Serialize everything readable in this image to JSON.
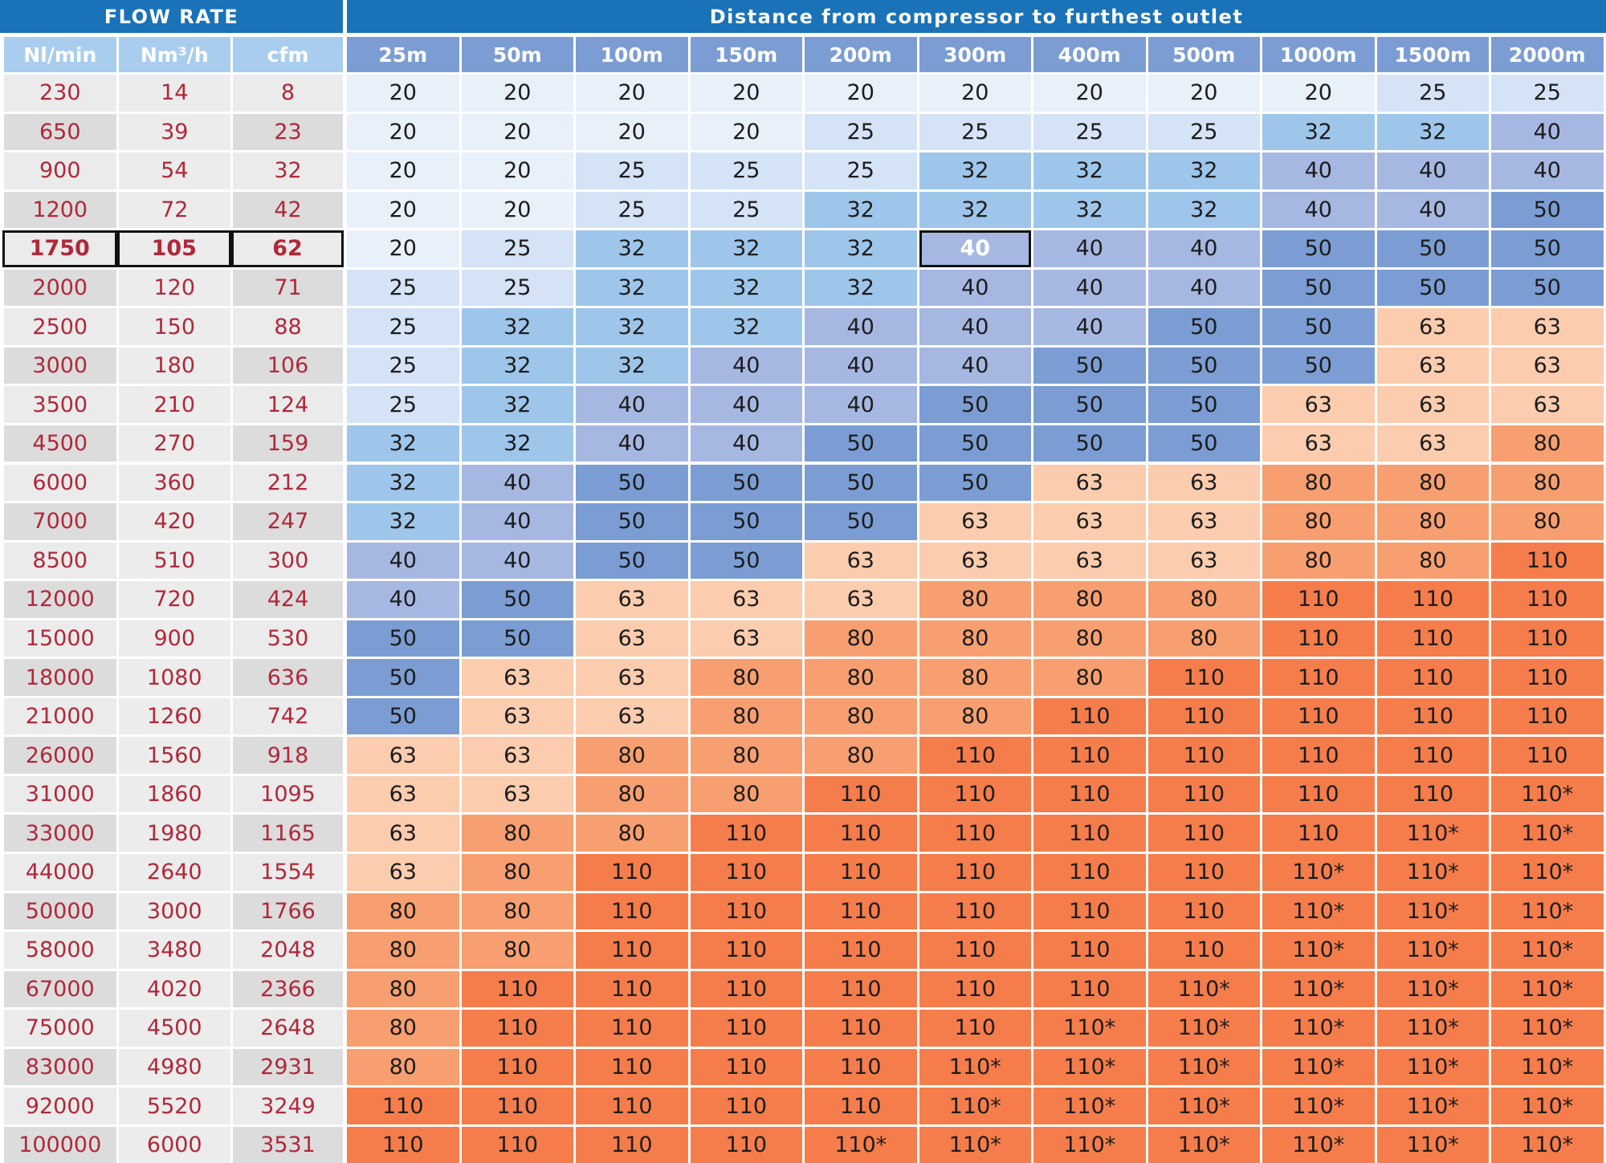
{
  "flow_rate_heading": "FLOW RATE",
  "distance_heading": "Distance from compressor to furthest outlet",
  "flow_columns": [
    "Nl/min",
    "Nm³/h",
    "cfm"
  ],
  "distance_columns": [
    "25m",
    "50m",
    "100m",
    "150m",
    "200m",
    "300m",
    "400m",
    "500m",
    "1000m",
    "1500m",
    "2000m"
  ],
  "highlight": {
    "row_flow_nl_min": "1750",
    "distance_column": "300m"
  },
  "colors": {
    "header_blue": "#1a72b9",
    "subheader_light_blue": "#5ca6df",
    "subheader_mid_blue": "#7b9dd3",
    "flow_text_red": "#b0283a",
    "pipe_20": "#e8f0fa",
    "pipe_25": "#d4e3f5",
    "pipe_32": "#9ec6ea",
    "pipe_40": "#a6b8e2",
    "pipe_50": "#7b9dd3",
    "pipe_63": "#fbccae",
    "pipe_80": "#f79f70",
    "pipe_110": "#f47d4b"
  },
  "chart_data": {
    "type": "table",
    "columns": [
      "Nl/min",
      "Nm³/h",
      "cfm",
      "25m",
      "50m",
      "100m",
      "150m",
      "200m",
      "300m",
      "400m",
      "500m",
      "1000m",
      "1500m",
      "2000m"
    ],
    "rows": [
      [
        "230",
        "14",
        "8",
        "20",
        "20",
        "20",
        "20",
        "20",
        "20",
        "20",
        "20",
        "20",
        "25",
        "25"
      ],
      [
        "650",
        "39",
        "23",
        "20",
        "20",
        "20",
        "20",
        "25",
        "25",
        "25",
        "25",
        "32",
        "32",
        "40"
      ],
      [
        "900",
        "54",
        "32",
        "20",
        "20",
        "25",
        "25",
        "25",
        "32",
        "32",
        "32",
        "40",
        "40",
        "40"
      ],
      [
        "1200",
        "72",
        "42",
        "20",
        "20",
        "25",
        "25",
        "32",
        "32",
        "32",
        "32",
        "40",
        "40",
        "50"
      ],
      [
        "1750",
        "105",
        "62",
        "20",
        "25",
        "32",
        "32",
        "32",
        "40",
        "40",
        "40",
        "50",
        "50",
        "50"
      ],
      [
        "2000",
        "120",
        "71",
        "25",
        "25",
        "32",
        "32",
        "32",
        "40",
        "40",
        "40",
        "50",
        "50",
        "50"
      ],
      [
        "2500",
        "150",
        "88",
        "25",
        "32",
        "32",
        "32",
        "40",
        "40",
        "40",
        "50",
        "50",
        "63",
        "63"
      ],
      [
        "3000",
        "180",
        "106",
        "25",
        "32",
        "32",
        "40",
        "40",
        "40",
        "50",
        "50",
        "50",
        "63",
        "63"
      ],
      [
        "3500",
        "210",
        "124",
        "25",
        "32",
        "40",
        "40",
        "40",
        "50",
        "50",
        "50",
        "63",
        "63",
        "63"
      ],
      [
        "4500",
        "270",
        "159",
        "32",
        "32",
        "40",
        "40",
        "50",
        "50",
        "50",
        "50",
        "63",
        "63",
        "80"
      ],
      [
        "6000",
        "360",
        "212",
        "32",
        "40",
        "50",
        "50",
        "50",
        "50",
        "63",
        "63",
        "80",
        "80",
        "80"
      ],
      [
        "7000",
        "420",
        "247",
        "32",
        "40",
        "50",
        "50",
        "50",
        "63",
        "63",
        "63",
        "80",
        "80",
        "80"
      ],
      [
        "8500",
        "510",
        "300",
        "40",
        "40",
        "50",
        "50",
        "63",
        "63",
        "63",
        "63",
        "80",
        "80",
        "110"
      ],
      [
        "12000",
        "720",
        "424",
        "40",
        "50",
        "63",
        "63",
        "63",
        "80",
        "80",
        "80",
        "110",
        "110",
        "110"
      ],
      [
        "15000",
        "900",
        "530",
        "50",
        "50",
        "63",
        "63",
        "80",
        "80",
        "80",
        "80",
        "110",
        "110",
        "110"
      ],
      [
        "18000",
        "1080",
        "636",
        "50",
        "63",
        "63",
        "80",
        "80",
        "80",
        "80",
        "110",
        "110",
        "110",
        "110"
      ],
      [
        "21000",
        "1260",
        "742",
        "50",
        "63",
        "63",
        "80",
        "80",
        "80",
        "110",
        "110",
        "110",
        "110",
        "110"
      ],
      [
        "26000",
        "1560",
        "918",
        "63",
        "63",
        "80",
        "80",
        "80",
        "110",
        "110",
        "110",
        "110",
        "110",
        "110"
      ],
      [
        "31000",
        "1860",
        "1095",
        "63",
        "63",
        "80",
        "80",
        "110",
        "110",
        "110",
        "110",
        "110",
        "110",
        "110*"
      ],
      [
        "33000",
        "1980",
        "1165",
        "63",
        "80",
        "80",
        "110",
        "110",
        "110",
        "110",
        "110",
        "110",
        "110*",
        "110*"
      ],
      [
        "44000",
        "2640",
        "1554",
        "63",
        "80",
        "110",
        "110",
        "110",
        "110",
        "110",
        "110",
        "110*",
        "110*",
        "110*"
      ],
      [
        "50000",
        "3000",
        "1766",
        "80",
        "80",
        "110",
        "110",
        "110",
        "110",
        "110",
        "110",
        "110*",
        "110*",
        "110*"
      ],
      [
        "58000",
        "3480",
        "2048",
        "80",
        "80",
        "110",
        "110",
        "110",
        "110",
        "110",
        "110",
        "110*",
        "110*",
        "110*"
      ],
      [
        "67000",
        "4020",
        "2366",
        "80",
        "110",
        "110",
        "110",
        "110",
        "110",
        "110",
        "110*",
        "110*",
        "110*",
        "110*"
      ],
      [
        "75000",
        "4500",
        "2648",
        "80",
        "110",
        "110",
        "110",
        "110",
        "110",
        "110*",
        "110*",
        "110*",
        "110*",
        "110*"
      ],
      [
        "83000",
        "4980",
        "2931",
        "80",
        "110",
        "110",
        "110",
        "110",
        "110*",
        "110*",
        "110*",
        "110*",
        "110*",
        "110*"
      ],
      [
        "92000",
        "5520",
        "3249",
        "110",
        "110",
        "110",
        "110",
        "110",
        "110*",
        "110*",
        "110*",
        "110*",
        "110*",
        "110*"
      ],
      [
        "100000",
        "6000",
        "3531",
        "110",
        "110",
        "110",
        "110",
        "110*",
        "110*",
        "110*",
        "110*",
        "110*",
        "110*",
        "110*"
      ]
    ]
  }
}
